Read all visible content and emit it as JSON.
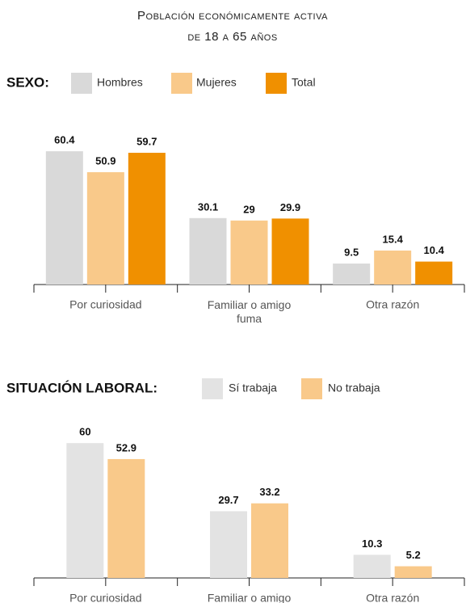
{
  "title": "Población económicamente activa",
  "subtitle": "de 18 a 65 años",
  "chart_data": [
    {
      "type": "bar",
      "legend_title": "SEXO:",
      "categories": [
        "Por curiosidad",
        "Familiar o amigo fuma",
        "Otra razón"
      ],
      "series": [
        {
          "name": "Hombres",
          "color": "#d9d9d9",
          "values": [
            60.4,
            30.1,
            9.5
          ]
        },
        {
          "name": "Mujeres",
          "color": "#f9c98a",
          "values": [
            50.9,
            29,
            15.4
          ]
        },
        {
          "name": "Total",
          "color": "#f09000",
          "values": [
            59.7,
            29.9,
            10.4
          ]
        }
      ],
      "ylim": [
        0,
        65
      ]
    },
    {
      "type": "bar",
      "legend_title": "SITUACIÓN LABORAL:",
      "categories": [
        "Por curiosidad",
        "Familiar o amigo",
        "Otra razón"
      ],
      "series": [
        {
          "name": "Sí trabaja",
          "color": "#e3e3e3",
          "values": [
            60,
            29.7,
            10.3
          ]
        },
        {
          "name": "No trabaja",
          "color": "#f9c98a",
          "values": [
            52.9,
            33.2,
            5.2
          ]
        }
      ],
      "ylim": [
        0,
        65
      ]
    }
  ]
}
